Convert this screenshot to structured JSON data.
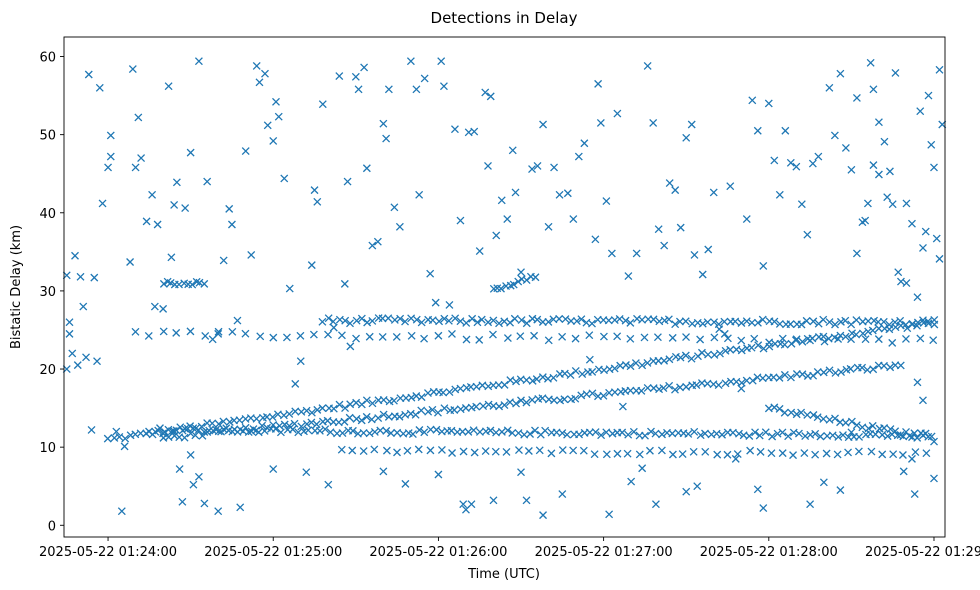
{
  "chart_data": {
    "type": "scatter",
    "title": "Detections in Delay",
    "xlabel": "Time (UTC)",
    "ylabel": "Bistatic Delay (km)",
    "x_unit": "seconds after 2025-05-22 01:24:00",
    "xlim": [
      -16,
      304
    ],
    "ylim": [
      -1.5,
      62.5
    ],
    "x_ticks": [
      {
        "value": 0,
        "label": "2025-05-22 01:24:00"
      },
      {
        "value": 60,
        "label": "2025-05-22 01:25:00"
      },
      {
        "value": 120,
        "label": "2025-05-22 01:26:00"
      },
      {
        "value": 180,
        "label": "2025-05-22 01:27:00"
      },
      {
        "value": 240,
        "label": "2025-05-22 01:28:00"
      },
      {
        "value": 300,
        "label": "2025-05-22 01:29:00"
      }
    ],
    "y_ticks": [
      {
        "value": 0,
        "label": "0"
      },
      {
        "value": 10,
        "label": "10"
      },
      {
        "value": 20,
        "label": "20"
      },
      {
        "value": 30,
        "label": "30"
      },
      {
        "value": 40,
        "label": "40"
      },
      {
        "value": 50,
        "label": "50"
      },
      {
        "value": 60,
        "label": "60"
      }
    ],
    "marker": "x",
    "color": "#1f77b4",
    "series": [
      {
        "name": "Detections",
        "tracks": [
          {
            "name": "track-rising-main",
            "start": [
              0,
              11.0
            ],
            "end": [
              300,
              26.0
            ],
            "step": 2,
            "jitter": 0.3
          },
          {
            "name": "track-rising-secondary",
            "start": [
              20,
              11.2
            ],
            "end": [
              288,
              20.5
            ],
            "step": 2,
            "jitter": 0.3
          },
          {
            "name": "track-flat-26",
            "start": [
              78,
              26.2
            ],
            "end": [
              300,
              26.0
            ],
            "step": 2,
            "jitter": 0.35
          },
          {
            "name": "track-flat-12",
            "start": [
              15,
              12.2
            ],
            "end": [
              300,
              11.5
            ],
            "step": 2,
            "jitter": 0.3
          },
          {
            "name": "track-descending",
            "start": [
              240,
              15.0
            ],
            "end": [
              300,
              11.0
            ],
            "step": 2,
            "jitter": 0.3
          },
          {
            "name": "track-high-31",
            "start": [
              20,
              31.0
            ],
            "end": [
              35,
              31.0
            ],
            "step": 1.5,
            "jitter": 0.2
          },
          {
            "name": "track-rising-mid",
            "start": [
              140,
              30.0
            ],
            "end": [
              155,
              32.0
            ],
            "step": 1.5,
            "jitter": 0.3
          },
          {
            "name": "track-flat-9",
            "start": [
              85,
              9.5
            ],
            "end": [
              300,
              9.2
            ],
            "step": 4,
            "jitter": 0.3
          },
          {
            "name": "track-flat-23",
            "start": [
              10,
              24.5
            ],
            "end": [
              300,
              23.5
            ],
            "step": 5,
            "jitter": 0.4
          }
        ],
        "points": [
          [
            -15,
            32.0
          ],
          [
            -15,
            20.0
          ],
          [
            -14,
            24.5
          ],
          [
            -14,
            26.0
          ],
          [
            -13,
            22.0
          ],
          [
            -12,
            34.5
          ],
          [
            -11,
            20.5
          ],
          [
            -10,
            31.8
          ],
          [
            -9,
            28.0
          ],
          [
            -8,
            21.5
          ],
          [
            -7,
            57.7
          ],
          [
            -6,
            12.2
          ],
          [
            -5,
            31.7
          ],
          [
            -4,
            21.0
          ],
          [
            -3,
            56.0
          ],
          [
            -2,
            41.2
          ],
          [
            0,
            45.8
          ],
          [
            1,
            47.2
          ],
          [
            1,
            49.9
          ],
          [
            3,
            12.0
          ],
          [
            5,
            1.8
          ],
          [
            6,
            10.1
          ],
          [
            8,
            33.7
          ],
          [
            9,
            58.4
          ],
          [
            10,
            45.8
          ],
          [
            11,
            52.2
          ],
          [
            12,
            47.0
          ],
          [
            14,
            38.9
          ],
          [
            16,
            42.3
          ],
          [
            17,
            28.0
          ],
          [
            18,
            38.5
          ],
          [
            20,
            27.7
          ],
          [
            22,
            56.2
          ],
          [
            23,
            34.3
          ],
          [
            24,
            41.0
          ],
          [
            25,
            43.9
          ],
          [
            27,
            3.0
          ],
          [
            28,
            40.6
          ],
          [
            30,
            47.7
          ],
          [
            31,
            5.2
          ],
          [
            33,
            59.4
          ],
          [
            35,
            2.8
          ],
          [
            36,
            44.0
          ],
          [
            38,
            23.8
          ],
          [
            40,
            24.5
          ],
          [
            42,
            33.9
          ],
          [
            44,
            40.5
          ],
          [
            45,
            38.5
          ],
          [
            47,
            26.2
          ],
          [
            50,
            47.9
          ],
          [
            52,
            34.6
          ],
          [
            54,
            58.8
          ],
          [
            55,
            56.7
          ],
          [
            57,
            57.8
          ],
          [
            58,
            51.2
          ],
          [
            60,
            49.2
          ],
          [
            61,
            54.2
          ],
          [
            62,
            52.3
          ],
          [
            64,
            44.4
          ],
          [
            66,
            30.3
          ],
          [
            68,
            18.1
          ],
          [
            70,
            21.0
          ],
          [
            72,
            6.8
          ],
          [
            74,
            33.3
          ],
          [
            75,
            42.9
          ],
          [
            76,
            41.4
          ],
          [
            78,
            53.9
          ],
          [
            80,
            5.2
          ],
          [
            82,
            25.3
          ],
          [
            84,
            57.5
          ],
          [
            86,
            30.9
          ],
          [
            87,
            44.0
          ],
          [
            88,
            22.9
          ],
          [
            90,
            57.4
          ],
          [
            91,
            55.8
          ],
          [
            93,
            58.6
          ],
          [
            94,
            45.7
          ],
          [
            96,
            35.8
          ],
          [
            98,
            36.3
          ],
          [
            100,
            51.4
          ],
          [
            101,
            49.5
          ],
          [
            102,
            55.8
          ],
          [
            104,
            40.7
          ],
          [
            106,
            38.2
          ],
          [
            108,
            5.3
          ],
          [
            110,
            59.4
          ],
          [
            112,
            55.8
          ],
          [
            113,
            42.3
          ],
          [
            115,
            57.2
          ],
          [
            117,
            32.2
          ],
          [
            119,
            28.5
          ],
          [
            121,
            59.4
          ],
          [
            122,
            56.2
          ],
          [
            124,
            28.2
          ],
          [
            126,
            50.7
          ],
          [
            128,
            39.0
          ],
          [
            129,
            2.7
          ],
          [
            131,
            50.3
          ],
          [
            133,
            50.4
          ],
          [
            135,
            35.1
          ],
          [
            137,
            55.4
          ],
          [
            138,
            46.0
          ],
          [
            139,
            54.9
          ],
          [
            141,
            37.1
          ],
          [
            143,
            41.6
          ],
          [
            145,
            39.2
          ],
          [
            147,
            48.0
          ],
          [
            148,
            42.6
          ],
          [
            150,
            32.4
          ],
          [
            152,
            3.2
          ],
          [
            154,
            45.6
          ],
          [
            156,
            46.0
          ],
          [
            158,
            51.3
          ],
          [
            160,
            38.2
          ],
          [
            162,
            45.8
          ],
          [
            164,
            42.3
          ],
          [
            165,
            4.0
          ],
          [
            167,
            42.5
          ],
          [
            169,
            39.2
          ],
          [
            171,
            47.2
          ],
          [
            173,
            48.9
          ],
          [
            175,
            21.2
          ],
          [
            177,
            36.6
          ],
          [
            178,
            56.5
          ],
          [
            179,
            51.5
          ],
          [
            181,
            41.5
          ],
          [
            183,
            34.8
          ],
          [
            185,
            52.7
          ],
          [
            187,
            15.2
          ],
          [
            189,
            31.9
          ],
          [
            190,
            5.6
          ],
          [
            192,
            34.8
          ],
          [
            194,
            7.3
          ],
          [
            196,
            58.8
          ],
          [
            198,
            51.5
          ],
          [
            200,
            37.9
          ],
          [
            202,
            35.8
          ],
          [
            204,
            43.8
          ],
          [
            206,
            42.9
          ],
          [
            208,
            38.1
          ],
          [
            210,
            49.6
          ],
          [
            212,
            51.3
          ],
          [
            213,
            34.6
          ],
          [
            214,
            5.0
          ],
          [
            216,
            32.1
          ],
          [
            218,
            35.3
          ],
          [
            220,
            42.6
          ],
          [
            222,
            25.1
          ],
          [
            224,
            24.5
          ],
          [
            226,
            43.4
          ],
          [
            228,
            8.5
          ],
          [
            230,
            17.5
          ],
          [
            232,
            39.2
          ],
          [
            234,
            54.4
          ],
          [
            236,
            50.5
          ],
          [
            238,
            33.2
          ],
          [
            240,
            54.0
          ],
          [
            242,
            46.7
          ],
          [
            244,
            42.3
          ],
          [
            246,
            50.5
          ],
          [
            248,
            46.4
          ],
          [
            250,
            45.9
          ],
          [
            252,
            41.1
          ],
          [
            254,
            37.2
          ],
          [
            256,
            46.3
          ],
          [
            258,
            47.2
          ],
          [
            260,
            5.5
          ],
          [
            262,
            56.0
          ],
          [
            264,
            49.9
          ],
          [
            266,
            57.8
          ],
          [
            268,
            48.3
          ],
          [
            270,
            45.5
          ],
          [
            272,
            54.7
          ],
          [
            274,
            38.8
          ],
          [
            276,
            41.2
          ],
          [
            277,
            59.2
          ],
          [
            278,
            55.8
          ],
          [
            280,
            51.6
          ],
          [
            282,
            49.1
          ],
          [
            284,
            45.3
          ],
          [
            286,
            57.9
          ],
          [
            288,
            31.2
          ],
          [
            290,
            41.2
          ],
          [
            292,
            38.6
          ],
          [
            294,
            29.2
          ],
          [
            296,
            35.5
          ],
          [
            298,
            55.0
          ],
          [
            300,
            45.8
          ],
          [
            302,
            58.3
          ],
          [
            303,
            51.3
          ],
          [
            270,
            11.9
          ],
          [
            272,
            34.8
          ],
          [
            275,
            39.0
          ],
          [
            278,
            46.1
          ],
          [
            280,
            44.9
          ],
          [
            283,
            42.0
          ],
          [
            285,
            41.1
          ],
          [
            287,
            32.4
          ],
          [
            290,
            31.0
          ],
          [
            293,
            4.0
          ],
          [
            295,
            53.0
          ],
          [
            297,
            37.6
          ],
          [
            299,
            48.7
          ],
          [
            301,
            36.7
          ],
          [
            302,
            34.1
          ],
          [
            300,
            6.0
          ],
          [
            296,
            16.0
          ],
          [
            294,
            18.3
          ],
          [
            292,
            8.5
          ],
          [
            289,
            6.9
          ],
          [
            33,
            6.2
          ],
          [
            40,
            1.8
          ],
          [
            48,
            2.3
          ],
          [
            130,
            2.0
          ],
          [
            132,
            2.7
          ],
          [
            140,
            3.2
          ],
          [
            158,
            1.3
          ],
          [
            182,
            1.4
          ],
          [
            199,
            2.7
          ],
          [
            210,
            4.3
          ],
          [
            238,
            2.2
          ],
          [
            236,
            4.6
          ],
          [
            255,
            2.7
          ],
          [
            266,
            4.5
          ],
          [
            150,
            6.8
          ],
          [
            120,
            6.5
          ],
          [
            60,
            7.2
          ],
          [
            30,
            9.0
          ],
          [
            26,
            7.2
          ],
          [
            100,
            6.9
          ]
        ]
      }
    ]
  }
}
